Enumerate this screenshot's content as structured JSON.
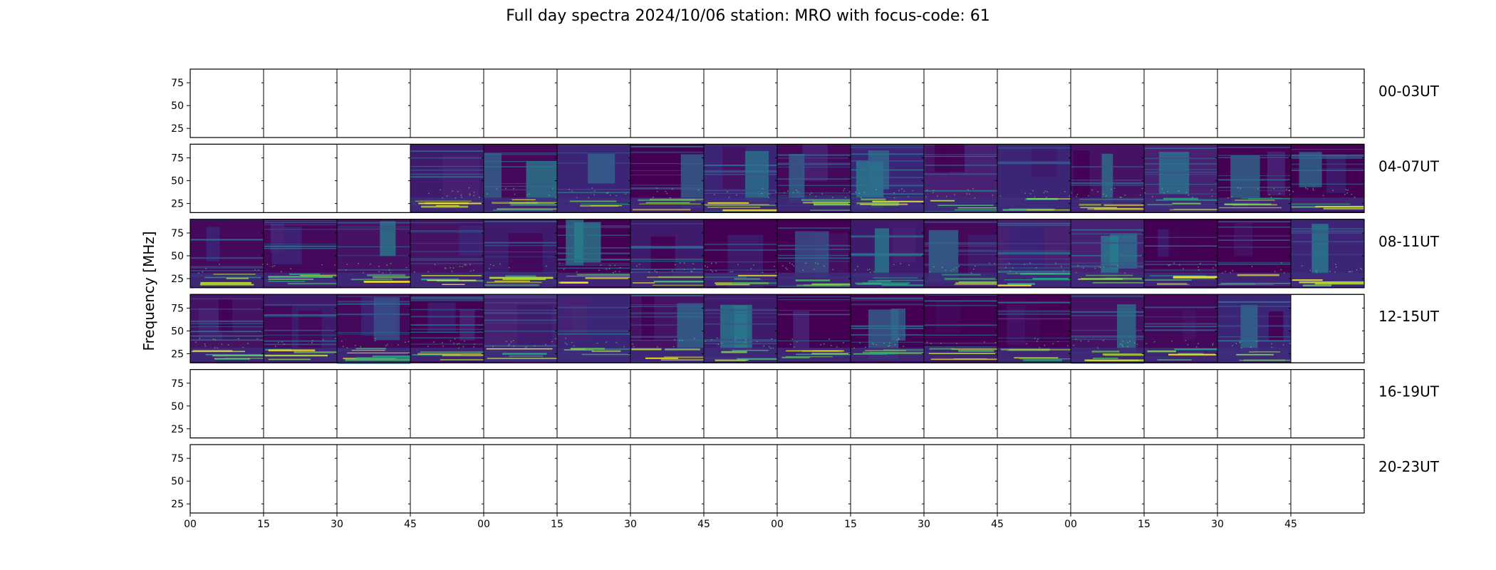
{
  "title": "Full day spectra 2024/10/06 station: MRO with focus-code: 61",
  "chart_data": {
    "type": "heatmap",
    "title": "Full day spectra 2024/10/06 station: MRO with focus-code: 61",
    "ylabel": "Frequency [MHz]",
    "xlabel": "",
    "y_ticks": [
      "75",
      "50",
      "25"
    ],
    "ylim": [
      15,
      90
    ],
    "x_ticks": [
      "00",
      "15",
      "30",
      "45",
      "00",
      "15",
      "30",
      "45",
      "00",
      "15",
      "30",
      "45",
      "00",
      "15",
      "30",
      "45"
    ],
    "colormap": "viridis",
    "colors": {
      "low": "#440154",
      "mid": "#21908d",
      "high": "#fde725",
      "base": "#3b0f6f"
    },
    "rows": [
      {
        "label": "00-03UT",
        "panels": [
          0,
          0,
          0,
          0,
          0,
          0,
          0,
          0,
          0,
          0,
          0,
          0,
          0,
          0,
          0,
          0
        ]
      },
      {
        "label": "04-07UT",
        "panels": [
          0,
          0,
          0,
          1,
          1,
          1,
          1,
          1,
          1,
          1,
          1,
          1,
          1,
          1,
          1,
          1
        ]
      },
      {
        "label": "08-11UT",
        "panels": [
          1,
          1,
          1,
          1,
          1,
          1,
          1,
          1,
          1,
          1,
          1,
          1,
          1,
          1,
          1,
          1
        ]
      },
      {
        "label": "12-15UT",
        "panels": [
          1,
          1,
          1,
          1,
          1,
          1,
          1,
          1,
          1,
          1,
          1,
          1,
          1,
          1,
          1,
          0
        ]
      },
      {
        "label": "16-19UT",
        "panels": [
          0,
          0,
          0,
          0,
          0,
          0,
          0,
          0,
          0,
          0,
          0,
          0,
          0,
          0,
          0,
          0
        ]
      },
      {
        "label": "20-23UT",
        "panels": [
          0,
          0,
          0,
          0,
          0,
          0,
          0,
          0,
          0,
          0,
          0,
          0,
          0,
          0,
          0,
          0
        ]
      }
    ]
  }
}
